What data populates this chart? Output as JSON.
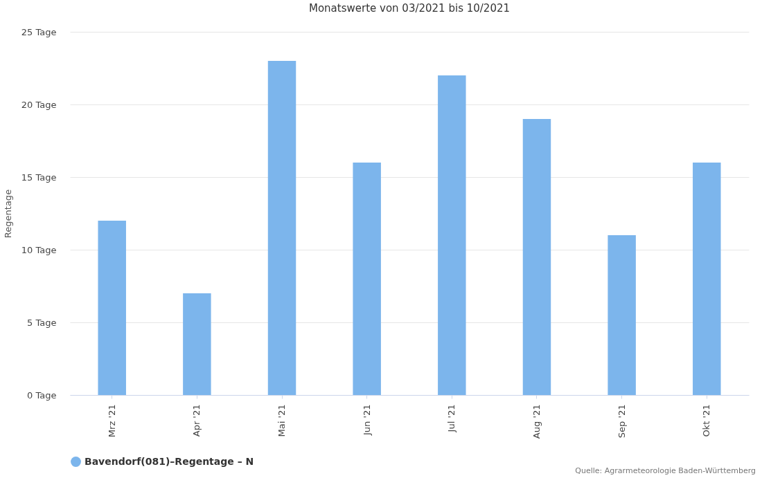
{
  "chart_data": {
    "type": "bar",
    "title": "Monatswerte von 03/2021 bis 10/2021",
    "ylabel": "Regentage",
    "categories": [
      "Mrz '21",
      "Apr '21",
      "Mai '21",
      "Jun '21",
      "Jul '21",
      "Aug '21",
      "Sep '21",
      "Okt '21"
    ],
    "series": [
      {
        "name": "Bavendorf(081)–Regentage – N",
        "color": "#7cb5ec",
        "values": [
          12,
          7,
          23,
          16,
          22,
          19,
          11,
          16
        ]
      }
    ],
    "ylim": [
      0,
      25
    ],
    "yticks": [
      {
        "value": 0,
        "label": "0 Tage"
      },
      {
        "value": 5,
        "label": "5 Tage"
      },
      {
        "value": 10,
        "label": "10 Tage"
      },
      {
        "value": 15,
        "label": "15 Tage"
      },
      {
        "value": 20,
        "label": "20 Tage"
      },
      {
        "value": 25,
        "label": "25 Tage"
      }
    ],
    "grid": "y",
    "legend": "bottom",
    "annotations": [
      "Quelle: Agrarmeteorologie Baden-Württemberg"
    ]
  }
}
